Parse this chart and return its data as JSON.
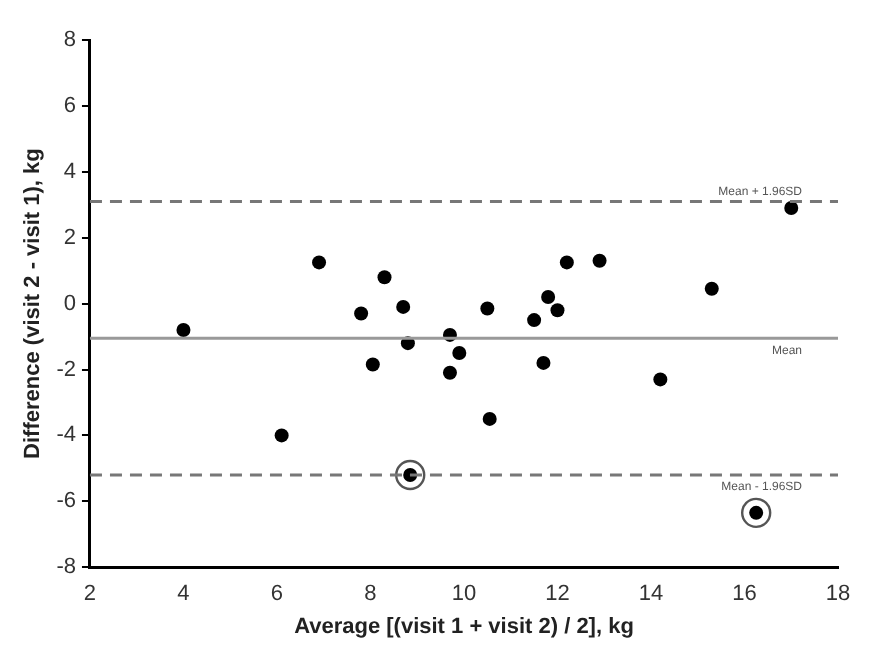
{
  "chart_data": {
    "type": "scatter",
    "xlabel": "Average [(visit 1 + visit 2) / 2], kg",
    "ylabel": "Difference (visit 2 - visit 1), kg",
    "xlim": [
      2,
      18
    ],
    "xticks": [
      2,
      4,
      6,
      8,
      10,
      12,
      14,
      16,
      18
    ],
    "ylim": [
      -8,
      8
    ],
    "yticks": [
      -8,
      -6,
      -4,
      -2,
      0,
      2,
      4,
      6,
      8
    ],
    "grid": false,
    "legend": false,
    "marker": "circle",
    "series": [
      {
        "color": "#000000",
        "x": [
          4.0,
          6.1,
          6.9,
          7.8,
          8.05,
          8.3,
          8.7,
          8.8,
          8.85,
          9.7,
          9.7,
          9.9,
          10.5,
          10.55,
          11.5,
          11.7,
          11.8,
          12.0,
          12.2,
          12.9,
          14.2,
          15.3,
          16.25,
          17.0
        ],
        "values": [
          -0.8,
          -4.0,
          1.25,
          -0.3,
          -1.85,
          0.8,
          -0.1,
          -1.2,
          -5.2,
          -0.95,
          -2.1,
          -1.5,
          -0.15,
          -3.5,
          -0.5,
          -1.8,
          0.2,
          -0.2,
          1.25,
          1.3,
          -2.3,
          0.45,
          -6.35,
          2.9
        ]
      },
      {
        "color": "#555555",
        "marker": "circle",
        "x": [
          8.85,
          16.25
        ],
        "values": [
          -5.2,
          -6.35
        ]
      }
    ],
    "ref_lines": [
      {
        "axis": "y",
        "value": 3.1,
        "label": "Mean + 1.96SD",
        "color": "#777777",
        "line_style": "dashed"
      },
      {
        "axis": "y",
        "value": -1.05,
        "label": "Mean",
        "color": "#999999",
        "line_style": "solid"
      },
      {
        "axis": "y",
        "value": -5.2,
        "label": "Mean - 1.96SD",
        "color": "#777777",
        "line_style": "dashed"
      }
    ]
  }
}
